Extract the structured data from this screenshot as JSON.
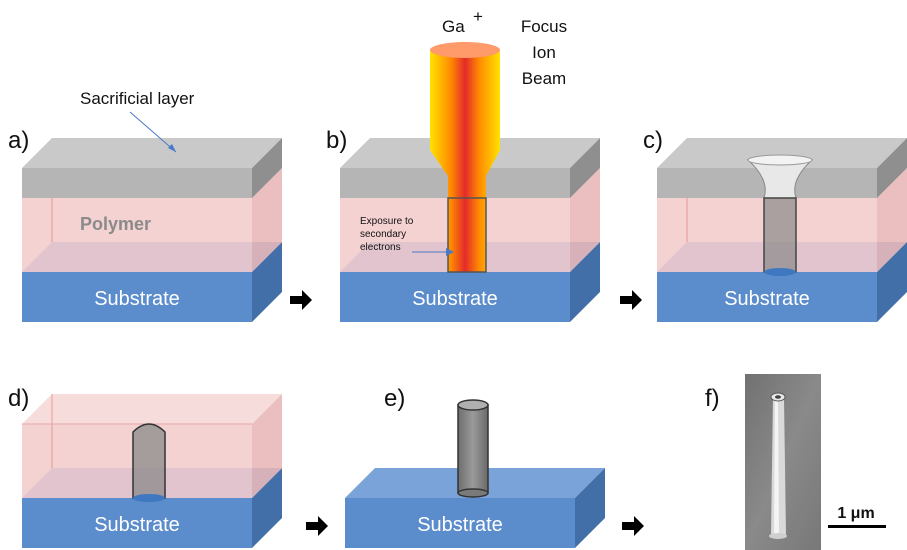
{
  "panels": [
    "a)",
    "b)",
    "c)",
    "d)",
    "e)",
    "f)"
  ],
  "labels": {
    "sacrificial_layer": "Sacrificial layer",
    "polymer": "Polymer",
    "substrate": "Substrate",
    "ion": "Ga",
    "ion_charge": "+",
    "beam_line1": "Focus",
    "beam_line2": "Ion",
    "beam_line3": "Beam",
    "exposure_line1": "Exposure to",
    "exposure_line2": "secondary",
    "exposure_line3": "electrons",
    "scale_bar": "1 μm"
  },
  "colors": {
    "substrate_front": "#5b8ccc",
    "substrate_top": "#7aa4d9",
    "substrate_side": "#426fa8",
    "polymer": "#f0c8c8",
    "sacrificial": "#bdbdbd",
    "beam_edge": "#ffd400",
    "beam_core": "#e8322a",
    "arrow": "#000000"
  }
}
